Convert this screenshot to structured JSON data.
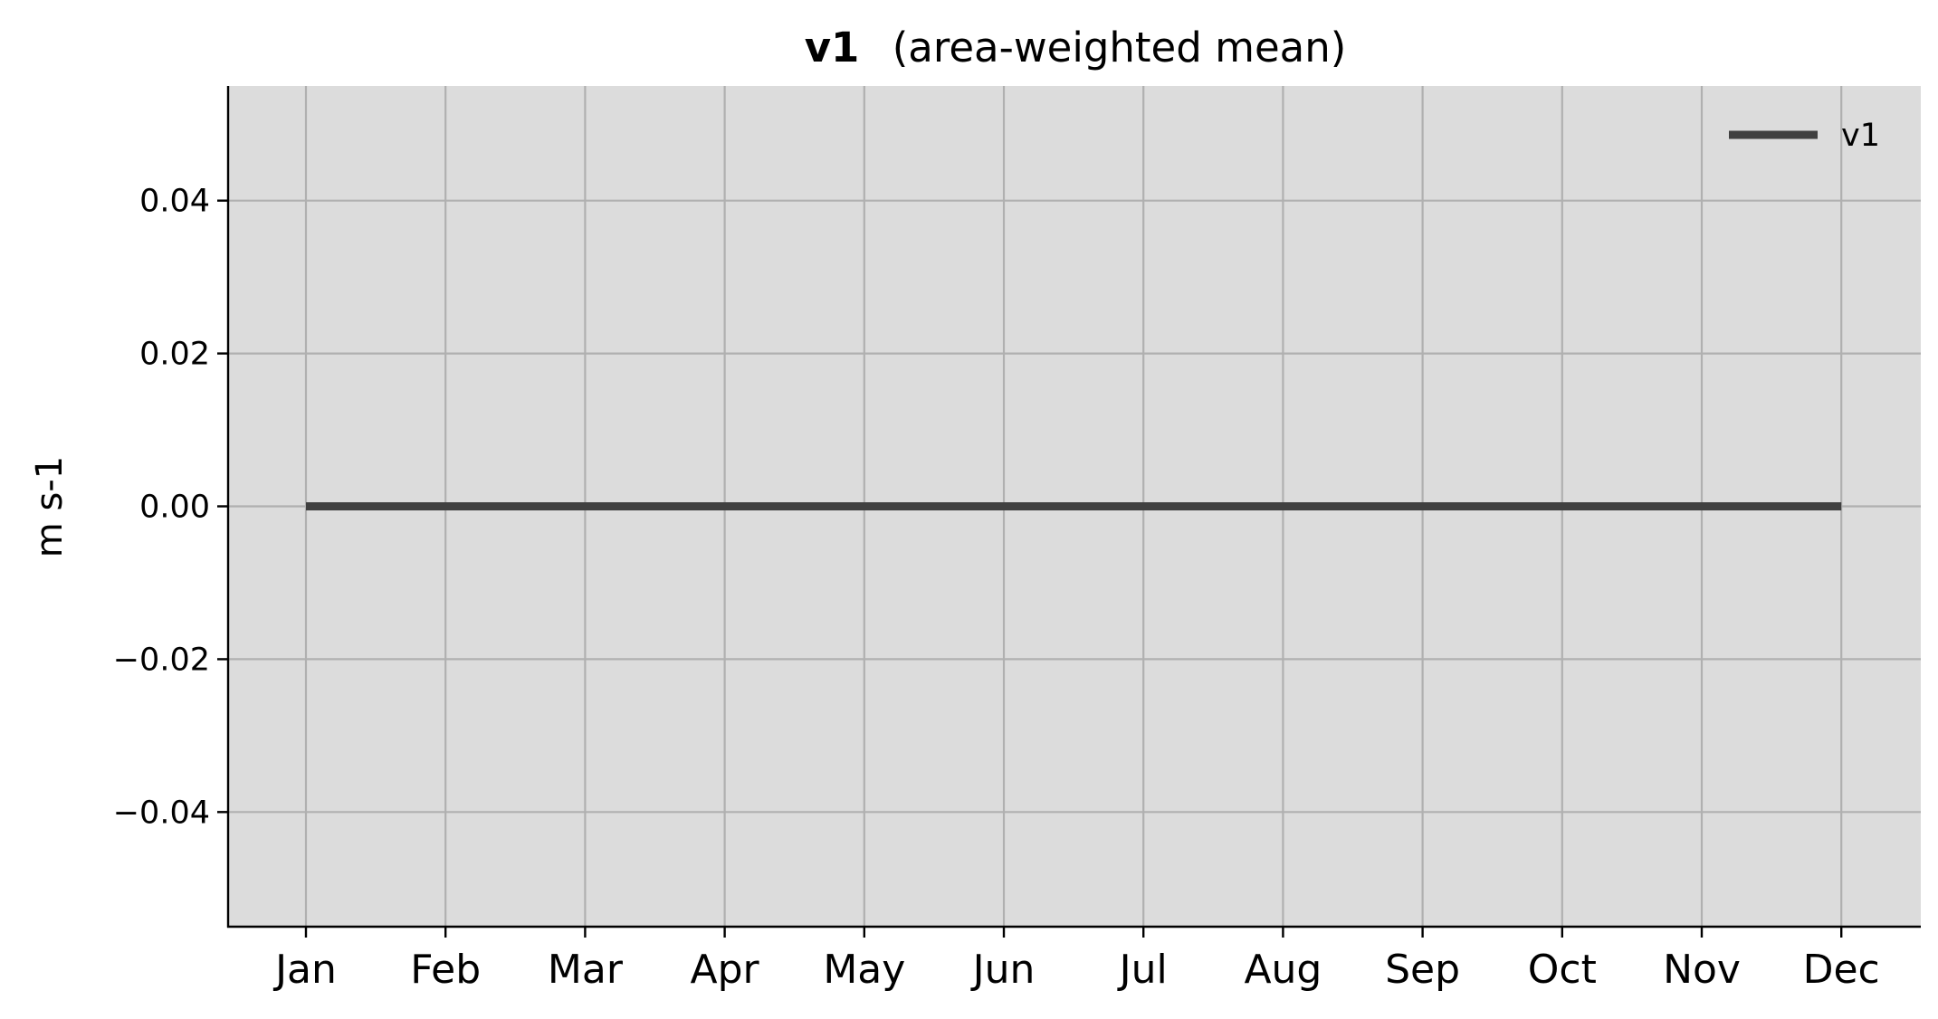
{
  "chart_data": {
    "type": "line",
    "title_bold": "v1",
    "title_rest": "(area-weighted mean)",
    "xlabel": "",
    "ylabel": "m s-1",
    "categories": [
      "Jan",
      "Feb",
      "Mar",
      "Apr",
      "May",
      "Jun",
      "Jul",
      "Aug",
      "Sep",
      "Oct",
      "Nov",
      "Dec"
    ],
    "series": [
      {
        "name": "v1",
        "values": [
          0,
          0,
          0,
          0,
          0,
          0,
          0,
          0,
          0,
          0,
          0,
          0
        ],
        "color": "#404040"
      }
    ],
    "ylim": [
      -0.055,
      0.055
    ],
    "yticks": [
      -0.04,
      -0.02,
      0.0,
      0.02,
      0.04
    ],
    "ytick_labels": [
      "−0.04",
      "−0.02",
      "0.00",
      "0.02",
      "0.04"
    ],
    "grid": true,
    "legend_position": "top-right",
    "background_color": "#dcdcdc",
    "grid_color": "#b0b0b0"
  }
}
